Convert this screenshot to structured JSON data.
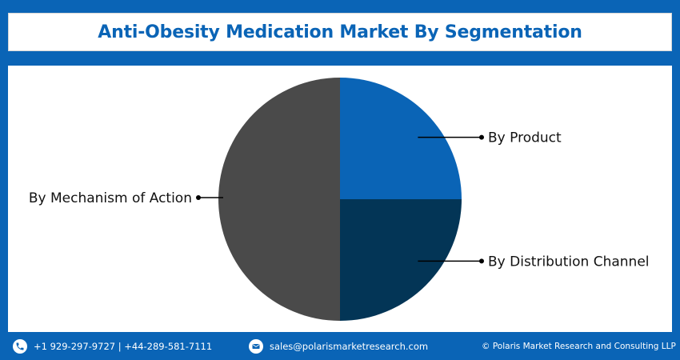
{
  "header": {
    "title": "Anti-Obesity Medication Market By Segmentation"
  },
  "chart_data": {
    "type": "pie",
    "title": "Anti-Obesity Medication Market By Segmentation",
    "slices": [
      {
        "label": "By Product",
        "value": 25,
        "color": "#0a64b6"
      },
      {
        "label": "By Distribution Channel",
        "value": 25,
        "color": "#033556"
      },
      {
        "label": "By Mechanism of Action",
        "value": 50,
        "color": "#4a4a4a"
      }
    ]
  },
  "footer": {
    "phone_icon": "phone-icon",
    "phone": "+1 929-297-9727 | +44-289-581-7111",
    "email_icon": "email-icon",
    "email": "sales@polarismarketresearch.com",
    "copyright": "© Polaris Market Research and Consulting LLP"
  }
}
